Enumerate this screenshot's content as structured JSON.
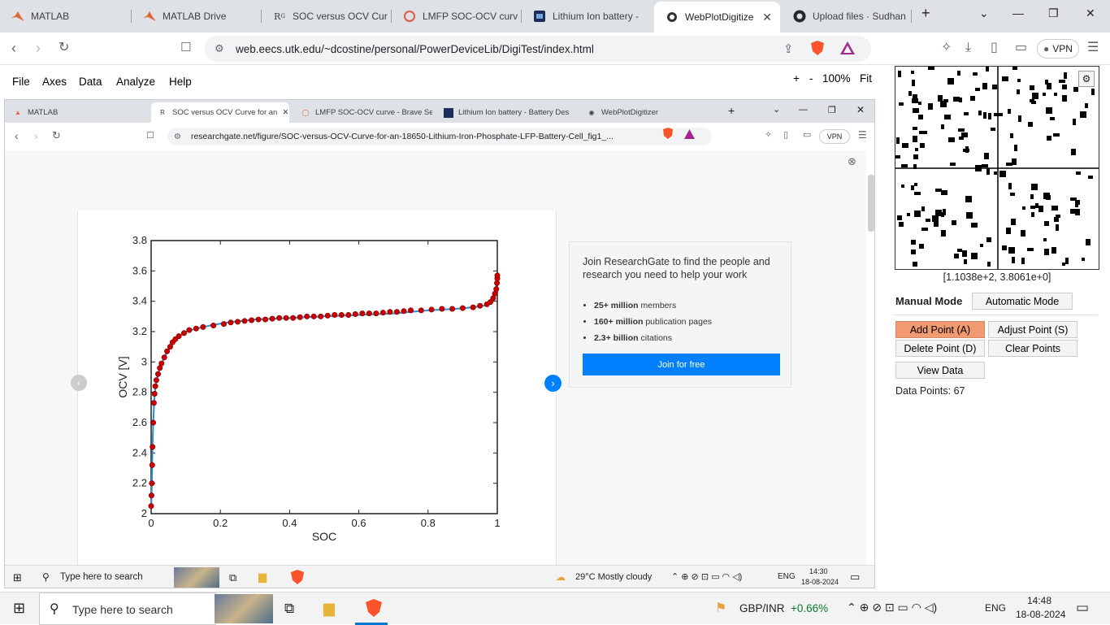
{
  "outer_tabs": [
    {
      "label": "MATLAB",
      "icon": "matlab-icon"
    },
    {
      "label": "MATLAB Drive",
      "icon": "matlab-icon"
    },
    {
      "label": "SOC versus OCV Cur",
      "icon": "researchgate-icon"
    },
    {
      "label": "LMFP SOC-OCV curv",
      "icon": "brave-search-icon"
    },
    {
      "label": "Lithium Ion battery -",
      "icon": "battery-design-icon"
    },
    {
      "label": "WebPlotDigitize",
      "icon": "webplotdigitizer-icon",
      "active": true
    },
    {
      "label": "Upload files · Sudhan",
      "icon": "github-icon"
    }
  ],
  "address": {
    "url": "web.eecs.utk.edu/~dcostine/personal/PowerDeviceLib/DigiTest/index.html",
    "vpn": "VPN"
  },
  "wpd_menu": [
    "File",
    "Axes",
    "Data",
    "Analyze",
    "Help"
  ],
  "zoom": {
    "plus": "+",
    "minus": "-",
    "level": "100%",
    "fit": "Fit"
  },
  "inner_tabs": [
    {
      "label": "MATLAB"
    },
    {
      "label": "SOC versus OCV Curve for an",
      "active": true
    },
    {
      "label": "LMFP SOC-OCV curve - Brave Se"
    },
    {
      "label": "Lithium Ion battery - Battery Des"
    },
    {
      "label": "WebPlotDigitizer"
    }
  ],
  "inner_address": {
    "url": "researchgate.net/figure/SOC-versus-OCV-Curve-for-an-18650-Lithium-Iron-Phosphate-LFP-Battery-Cell_fig1_...",
    "vpn": "VPN"
  },
  "researchgate": {
    "heading": "Join ResearchGate to find the people and research you need to help your work",
    "bullets": [
      {
        "strong": "25+ million",
        "rest": " members"
      },
      {
        "strong": "160+ million",
        "rest": " publication pages"
      },
      {
        "strong": "2.3+ billion",
        "rest": " citations"
      }
    ],
    "button": "Join for free"
  },
  "inner_taskbar": {
    "search": "Type here to search",
    "weather": "29°C  Mostly cloudy",
    "lang": "ENG",
    "time": "14:30",
    "date": "18-08-2024"
  },
  "chart_data": {
    "type": "line",
    "xlabel": "SOC",
    "ylabel": "OCV [V]",
    "xlim": [
      0,
      1
    ],
    "ylim": [
      2,
      3.8
    ],
    "xticks": [
      "0",
      "0.2",
      "0.4",
      "0.6",
      "0.8",
      "1"
    ],
    "yticks": [
      "2",
      "2.2",
      "2.4",
      "2.6",
      "2.8",
      "3",
      "3.2",
      "3.4",
      "3.6",
      "3.8"
    ],
    "series": [
      {
        "kind": "curve",
        "color": "#2a8fd0",
        "x": [
          0.0,
          0.002,
          0.004,
          0.006,
          0.009,
          0.013,
          0.02,
          0.03,
          0.045,
          0.06,
          0.08,
          0.1,
          0.13,
          0.17,
          0.22,
          0.3,
          0.4,
          0.5,
          0.6,
          0.7,
          0.8,
          0.88,
          0.93,
          0.96,
          0.98,
          0.99,
          0.995,
          1.0
        ],
        "y": [
          2.03,
          2.2,
          2.45,
          2.6,
          2.75,
          2.84,
          2.92,
          2.99,
          3.06,
          3.12,
          3.17,
          3.2,
          3.22,
          3.24,
          3.26,
          3.28,
          3.29,
          3.3,
          3.31,
          3.32,
          3.34,
          3.35,
          3.36,
          3.37,
          3.39,
          3.43,
          3.48,
          3.56
        ]
      },
      {
        "kind": "points",
        "color": "#cc0000",
        "x": [
          0.0,
          0.001,
          0.002,
          0.003,
          0.004,
          0.006,
          0.008,
          0.01,
          0.012,
          0.015,
          0.02,
          0.025,
          0.03,
          0.038,
          0.046,
          0.055,
          0.062,
          0.07,
          0.08,
          0.095,
          0.11,
          0.13,
          0.15,
          0.18,
          0.21,
          0.23,
          0.25,
          0.27,
          0.29,
          0.31,
          0.33,
          0.35,
          0.37,
          0.39,
          0.41,
          0.43,
          0.45,
          0.47,
          0.49,
          0.51,
          0.53,
          0.55,
          0.57,
          0.59,
          0.61,
          0.63,
          0.65,
          0.67,
          0.69,
          0.71,
          0.73,
          0.75,
          0.78,
          0.81,
          0.84,
          0.87,
          0.9,
          0.93,
          0.95,
          0.97,
          0.98,
          0.988,
          0.993,
          0.997,
          0.999,
          1.0,
          1.0
        ],
        "y": [
          2.05,
          2.12,
          2.2,
          2.32,
          2.44,
          2.6,
          2.73,
          2.79,
          2.84,
          2.88,
          2.92,
          2.96,
          2.99,
          3.03,
          3.07,
          3.1,
          3.13,
          3.15,
          3.17,
          3.19,
          3.21,
          3.22,
          3.23,
          3.24,
          3.25,
          3.26,
          3.265,
          3.27,
          3.275,
          3.28,
          3.28,
          3.285,
          3.29,
          3.29,
          3.29,
          3.295,
          3.3,
          3.3,
          3.3,
          3.305,
          3.31,
          3.31,
          3.31,
          3.315,
          3.32,
          3.32,
          3.32,
          3.325,
          3.33,
          3.33,
          3.335,
          3.34,
          3.34,
          3.345,
          3.35,
          3.35,
          3.355,
          3.36,
          3.37,
          3.38,
          3.395,
          3.42,
          3.45,
          3.48,
          3.52,
          3.55,
          3.57
        ]
      }
    ]
  },
  "zoom_coord": "[1.1038e+2, 3.8061e+0]",
  "panel": {
    "manual_mode": "Manual Mode",
    "automatic_mode": "Automatic Mode",
    "add_point": "Add Point (A)",
    "adjust_point": "Adjust Point (S)",
    "delete_point": "Delete Point (D)",
    "clear_points": "Clear Points",
    "view_data": "View Data",
    "data_points": "Data Points: 67"
  },
  "taskbar": {
    "search": "Type here to search",
    "ticker": "GBP/INR",
    "ticker_change": "+0.66%",
    "lang": "ENG",
    "time": "14:48",
    "date": "18-08-2024"
  },
  "colors": {
    "accent_button": "#f29a72",
    "rg_blue": "#0080ff",
    "curve": "#2a8fd0",
    "points": "#cc0000"
  }
}
